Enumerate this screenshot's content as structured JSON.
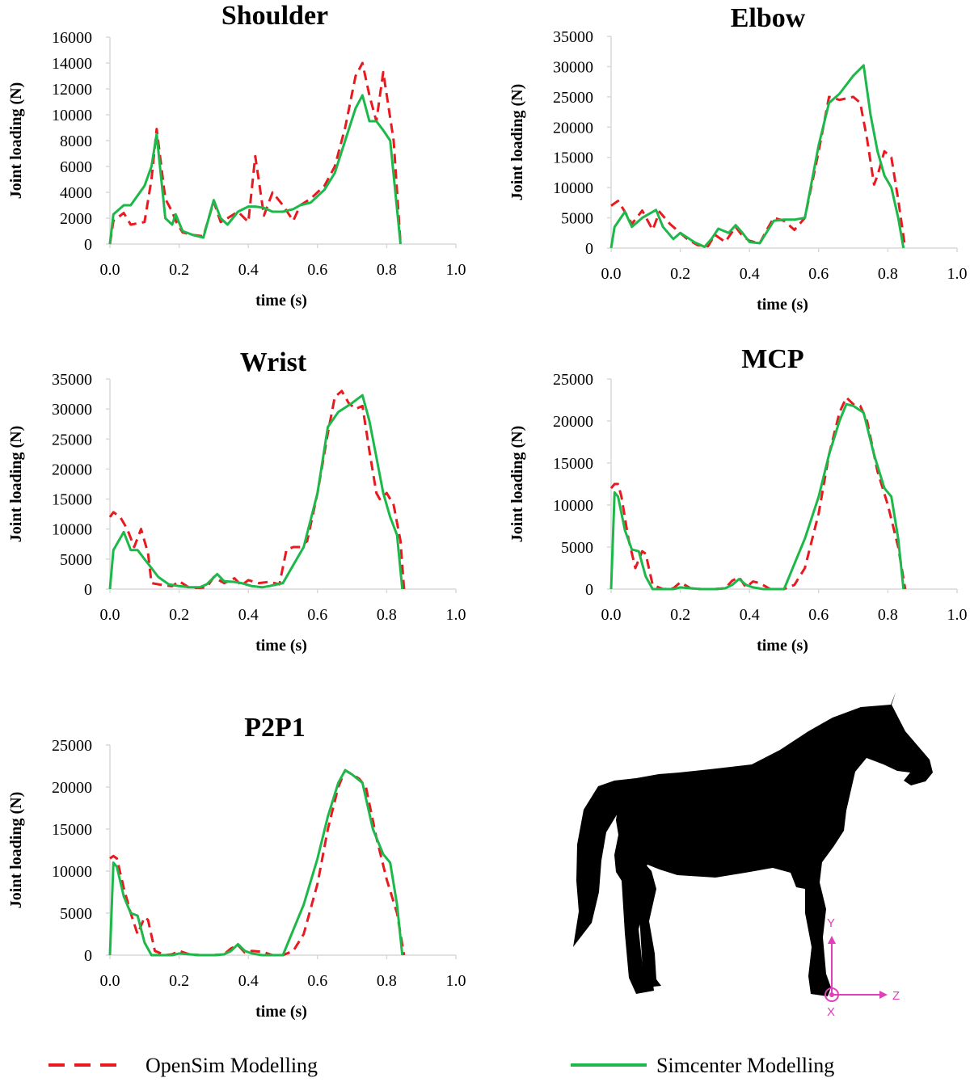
{
  "colors": {
    "opensim": "#e8191f",
    "simcenter": "#1db84a",
    "axis": "#d9d9d9",
    "silhouette": "#000000",
    "coord": "#e040b8"
  },
  "legend": {
    "opensim": "OpenSim Modelling",
    "simcenter": "Simcenter Modelling"
  },
  "coordinate_axes": {
    "y": "Y",
    "z": "Z",
    "x": "X"
  },
  "chart_data": [
    {
      "type": "line",
      "title": "Shoulder",
      "xlabel": "time (s)",
      "ylabel": "Joint loading (N)",
      "xlim": [
        0,
        1
      ],
      "ylim": [
        0,
        16000
      ],
      "xticks": [
        "0.0",
        "0.2",
        "0.4",
        "0.6",
        "0.8",
        "1.0"
      ],
      "yticks": [
        "0",
        "2000",
        "4000",
        "6000",
        "8000",
        "10000",
        "12000",
        "14000",
        "16000"
      ],
      "series": [
        {
          "name": "OpenSim Modelling",
          "style": "dashed",
          "x": [
            0.0,
            0.01,
            0.04,
            0.06,
            0.1,
            0.12,
            0.135,
            0.16,
            0.18,
            0.19,
            0.21,
            0.24,
            0.27,
            0.3,
            0.32,
            0.34,
            0.37,
            0.4,
            0.42,
            0.445,
            0.47,
            0.5,
            0.53,
            0.55,
            0.58,
            0.62,
            0.65,
            0.68,
            0.71,
            0.73,
            0.75,
            0.77,
            0.79,
            0.82,
            0.84
          ],
          "y": [
            0,
            1800,
            2400,
            1500,
            1700,
            5000,
            8900,
            3500,
            2500,
            1800,
            900,
            700,
            600,
            3300,
            1700,
            2000,
            2500,
            1700,
            6800,
            2200,
            4000,
            3000,
            1800,
            3000,
            3500,
            4500,
            6000,
            9000,
            13000,
            14000,
            11500,
            9500,
            13300,
            8000,
            0
          ]
        },
        {
          "name": "Simcenter Modelling",
          "style": "solid",
          "x": [
            0.0,
            0.01,
            0.04,
            0.06,
            0.1,
            0.12,
            0.135,
            0.16,
            0.18,
            0.19,
            0.21,
            0.24,
            0.27,
            0.3,
            0.32,
            0.34,
            0.37,
            0.4,
            0.42,
            0.445,
            0.47,
            0.5,
            0.53,
            0.55,
            0.58,
            0.62,
            0.65,
            0.68,
            0.71,
            0.73,
            0.75,
            0.77,
            0.79,
            0.81,
            0.84
          ],
          "y": [
            0,
            2300,
            3000,
            3000,
            4500,
            6000,
            8500,
            2000,
            1500,
            2300,
            1000,
            700,
            500,
            3400,
            2000,
            1500,
            2500,
            2900,
            2900,
            2800,
            2500,
            2500,
            2700,
            3000,
            3200,
            4200,
            5500,
            8000,
            10500,
            11500,
            9500,
            9500,
            8800,
            8000,
            0
          ]
        }
      ]
    },
    {
      "type": "line",
      "title": "Elbow",
      "xlabel": "time (s)",
      "ylabel": "Joint loading (N)",
      "xlim": [
        0,
        1
      ],
      "ylim": [
        0,
        35000
      ],
      "xticks": [
        "0.0",
        "0.2",
        "0.4",
        "0.6",
        "0.8",
        "1.0"
      ],
      "yticks": [
        "0",
        "5000",
        "10000",
        "15000",
        "20000",
        "25000",
        "30000",
        "35000"
      ],
      "series": [
        {
          "name": "OpenSim Modelling",
          "style": "dashed",
          "x": [
            0.0,
            0.02,
            0.04,
            0.06,
            0.09,
            0.12,
            0.14,
            0.17,
            0.19,
            0.22,
            0.25,
            0.28,
            0.3,
            0.33,
            0.36,
            0.38,
            0.4,
            0.43,
            0.45,
            0.47,
            0.5,
            0.53,
            0.56,
            0.6,
            0.63,
            0.66,
            0.7,
            0.72,
            0.74,
            0.76,
            0.77,
            0.79,
            0.81,
            0.83,
            0.85
          ],
          "y": [
            7000,
            7800,
            6000,
            4000,
            6200,
            3000,
            6000,
            4000,
            3000,
            1500,
            500,
            300,
            2200,
            1000,
            3500,
            2000,
            1200,
            800,
            3000,
            5000,
            4500,
            3000,
            5000,
            16000,
            25000,
            24500,
            25000,
            24000,
            18000,
            10500,
            12000,
            16000,
            15000,
            8000,
            0
          ]
        },
        {
          "name": "Simcenter Modelling",
          "style": "solid",
          "x": [
            0.0,
            0.01,
            0.04,
            0.06,
            0.09,
            0.13,
            0.15,
            0.18,
            0.2,
            0.24,
            0.27,
            0.29,
            0.31,
            0.34,
            0.36,
            0.38,
            0.4,
            0.43,
            0.47,
            0.5,
            0.53,
            0.56,
            0.6,
            0.63,
            0.66,
            0.7,
            0.73,
            0.75,
            0.77,
            0.79,
            0.81,
            0.83,
            0.845
          ],
          "y": [
            0,
            3500,
            6000,
            3500,
            5000,
            6300,
            3500,
            1500,
            2500,
            1000,
            200,
            1500,
            3200,
            2500,
            3800,
            2500,
            1000,
            800,
            4500,
            4700,
            4700,
            5000,
            17000,
            24000,
            25500,
            28500,
            30200,
            22000,
            16000,
            12000,
            10000,
            5000,
            0
          ]
        }
      ]
    },
    {
      "type": "line",
      "title": "Wrist",
      "xlabel": "time (s)",
      "ylabel": "Joint loading (N)",
      "xlim": [
        0,
        1
      ],
      "ylim": [
        0,
        35000
      ],
      "xticks": [
        "0.0",
        "0.2",
        "0.4",
        "0.6",
        "0.8",
        "1.0"
      ],
      "yticks": [
        "0",
        "5000",
        "10000",
        "15000",
        "20000",
        "25000",
        "30000",
        "35000"
      ],
      "series": [
        {
          "name": "OpenSim Modelling",
          "style": "dashed",
          "x": [
            0.0,
            0.01,
            0.03,
            0.05,
            0.07,
            0.09,
            0.11,
            0.12,
            0.14,
            0.16,
            0.18,
            0.2,
            0.23,
            0.26,
            0.28,
            0.3,
            0.33,
            0.36,
            0.38,
            0.4,
            0.43,
            0.46,
            0.49,
            0.51,
            0.53,
            0.55,
            0.57,
            0.6,
            0.63,
            0.65,
            0.67,
            0.69,
            0.71,
            0.73,
            0.75,
            0.77,
            0.78,
            0.8,
            0.82,
            0.84,
            0.85
          ],
          "y": [
            12000,
            12800,
            12000,
            10000,
            7000,
            10000,
            6000,
            1000,
            800,
            600,
            500,
            1300,
            200,
            200,
            300,
            2000,
            1000,
            1800,
            600,
            1500,
            1000,
            1200,
            800,
            6500,
            7000,
            7000,
            8000,
            16000,
            26000,
            32000,
            33000,
            31000,
            30000,
            30500,
            23000,
            16000,
            15000,
            16000,
            14000,
            8000,
            0
          ]
        },
        {
          "name": "Simcenter Modelling",
          "style": "solid",
          "x": [
            0.0,
            0.01,
            0.04,
            0.06,
            0.08,
            0.1,
            0.12,
            0.14,
            0.17,
            0.2,
            0.23,
            0.26,
            0.28,
            0.31,
            0.33,
            0.36,
            0.38,
            0.41,
            0.44,
            0.46,
            0.5,
            0.53,
            0.56,
            0.6,
            0.63,
            0.66,
            0.7,
            0.73,
            0.75,
            0.77,
            0.79,
            0.81,
            0.83,
            0.845
          ],
          "y": [
            0,
            6500,
            9500,
            6500,
            6500,
            5000,
            3500,
            2000,
            800,
            500,
            300,
            300,
            800,
            2500,
            1300,
            1200,
            1000,
            500,
            300,
            500,
            1000,
            4000,
            7000,
            16000,
            27000,
            29500,
            31000,
            32300,
            28000,
            22000,
            16000,
            12000,
            9000,
            0
          ]
        }
      ]
    },
    {
      "type": "line",
      "title": "MCP",
      "xlabel": "time (s)",
      "ylabel": "Joint loading (N)",
      "xlim": [
        0,
        1
      ],
      "ylim": [
        0,
        25000
      ],
      "xticks": [
        "0.0",
        "0.2",
        "0.4",
        "0.6",
        "0.8",
        "1.0"
      ],
      "yticks": [
        "0",
        "5000",
        "10000",
        "15000",
        "20000",
        "25000"
      ],
      "series": [
        {
          "name": "OpenSim Modelling",
          "style": "dashed",
          "x": [
            0.0,
            0.01,
            0.02,
            0.03,
            0.05,
            0.07,
            0.09,
            0.1,
            0.12,
            0.15,
            0.18,
            0.2,
            0.23,
            0.26,
            0.3,
            0.33,
            0.35,
            0.37,
            0.39,
            0.41,
            0.43,
            0.46,
            0.5,
            0.53,
            0.56,
            0.6,
            0.63,
            0.66,
            0.68,
            0.7,
            0.72,
            0.74,
            0.77,
            0.8,
            0.83,
            0.85
          ],
          "y": [
            12000,
            12500,
            12500,
            11000,
            6000,
            2500,
            4500,
            4200,
            500,
            0,
            100,
            800,
            100,
            0,
            0,
            100,
            1000,
            1400,
            200,
            900,
            700,
            0,
            0,
            500,
            2500,
            9000,
            16000,
            21000,
            22800,
            22000,
            21800,
            20000,
            14000,
            10000,
            5000,
            0
          ]
        },
        {
          "name": "Simcenter Modelling",
          "style": "solid",
          "x": [
            0.0,
            0.01,
            0.02,
            0.04,
            0.06,
            0.08,
            0.1,
            0.12,
            0.15,
            0.18,
            0.2,
            0.23,
            0.26,
            0.3,
            0.33,
            0.35,
            0.37,
            0.39,
            0.41,
            0.44,
            0.47,
            0.5,
            0.53,
            0.56,
            0.6,
            0.63,
            0.66,
            0.68,
            0.7,
            0.73,
            0.76,
            0.79,
            0.81,
            0.83,
            0.845
          ],
          "y": [
            0,
            11500,
            11000,
            7000,
            4700,
            4500,
            1500,
            0,
            0,
            0,
            200,
            100,
            0,
            0,
            100,
            500,
            1200,
            500,
            200,
            0,
            0,
            0,
            3000,
            6000,
            11000,
            16000,
            20000,
            22000,
            21800,
            21000,
            16000,
            12000,
            11000,
            6000,
            0
          ]
        }
      ]
    },
    {
      "type": "line",
      "title": "P2P1",
      "xlabel": "time (s)",
      "ylabel": "Joint loading (N)",
      "xlim": [
        0,
        1
      ],
      "ylim": [
        0,
        25000
      ],
      "xticks": [
        "0.0",
        "0.2",
        "0.4",
        "0.6",
        "0.8",
        "1.0"
      ],
      "yticks": [
        "0",
        "5000",
        "10000",
        "15000",
        "20000",
        "25000"
      ],
      "series": [
        {
          "name": "OpenSim Modelling",
          "style": "dashed",
          "x": [
            0.0,
            0.01,
            0.02,
            0.04,
            0.06,
            0.08,
            0.1,
            0.11,
            0.13,
            0.16,
            0.18,
            0.2,
            0.23,
            0.26,
            0.3,
            0.33,
            0.35,
            0.37,
            0.39,
            0.41,
            0.44,
            0.47,
            0.5,
            0.53,
            0.56,
            0.6,
            0.63,
            0.66,
            0.68,
            0.7,
            0.72,
            0.74,
            0.77,
            0.8,
            0.83,
            0.85
          ],
          "y": [
            11500,
            11800,
            11500,
            8000,
            5000,
            2500,
            4500,
            4200,
            500,
            0,
            100,
            500,
            100,
            0,
            0,
            100,
            800,
            1200,
            300,
            500,
            400,
            0,
            0,
            500,
            2500,
            8500,
            15000,
            20000,
            22000,
            21500,
            21000,
            20000,
            14000,
            9000,
            5000,
            0
          ]
        },
        {
          "name": "Simcenter Modelling",
          "style": "solid",
          "x": [
            0.0,
            0.01,
            0.02,
            0.04,
            0.06,
            0.08,
            0.1,
            0.12,
            0.15,
            0.18,
            0.2,
            0.23,
            0.26,
            0.3,
            0.33,
            0.35,
            0.37,
            0.39,
            0.41,
            0.44,
            0.47,
            0.5,
            0.53,
            0.56,
            0.6,
            0.63,
            0.66,
            0.68,
            0.7,
            0.73,
            0.76,
            0.79,
            0.81,
            0.83,
            0.845
          ],
          "y": [
            0,
            11000,
            10500,
            7000,
            5000,
            4700,
            1500,
            0,
            0,
            0,
            200,
            100,
            0,
            0,
            100,
            500,
            1300,
            500,
            200,
            0,
            0,
            0,
            3000,
            6000,
            11500,
            16500,
            20500,
            22000,
            21500,
            20500,
            15000,
            12000,
            11000,
            6000,
            0
          ]
        }
      ]
    }
  ]
}
